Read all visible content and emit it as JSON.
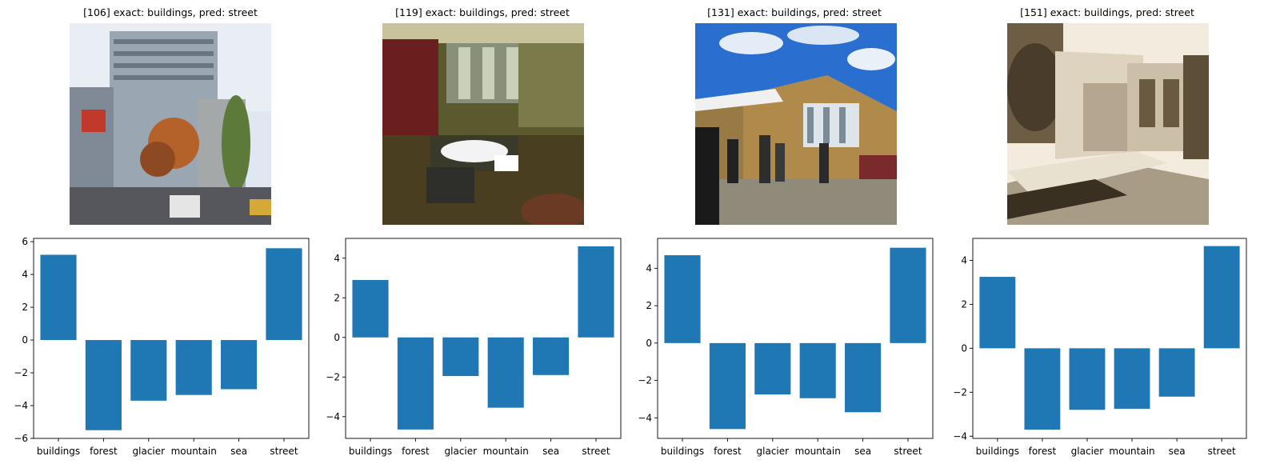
{
  "panels": [
    {
      "title": "[106] exact: buildings, pred: street",
      "image": "city street with tall buildings and autumn trees",
      "chart_data": {
        "type": "bar",
        "categories": [
          "buildings",
          "forest",
          "glacier",
          "mountain",
          "sea",
          "street"
        ],
        "values": [
          5.2,
          -5.5,
          -3.7,
          -3.35,
          -3.0,
          5.6
        ],
        "ylim": [
          -6.0,
          6.2
        ],
        "yticks": [
          -6,
          -4,
          -2,
          0,
          2,
          4,
          6
        ]
      }
    },
    {
      "title": "[119] exact: buildings, pred: street",
      "image": "indoor lounge with people seated on chairs",
      "chart_data": {
        "type": "bar",
        "categories": [
          "buildings",
          "forest",
          "glacier",
          "mountain",
          "sea",
          "street"
        ],
        "values": [
          2.9,
          -4.65,
          -1.95,
          -3.55,
          -1.9,
          4.6
        ],
        "ylim": [
          -5.1,
          5.0
        ],
        "yticks": [
          -4,
          -2,
          0,
          2,
          4
        ]
      }
    },
    {
      "title": "[131] exact: buildings, pred: street",
      "image": "brick building entrance with people under blue sky",
      "chart_data": {
        "type": "bar",
        "categories": [
          "buildings",
          "forest",
          "glacier",
          "mountain",
          "sea",
          "street"
        ],
        "values": [
          4.7,
          -4.6,
          -2.75,
          -2.95,
          -3.7,
          5.1
        ],
        "ylim": [
          -5.1,
          5.6
        ],
        "yticks": [
          -4,
          -2,
          0,
          2,
          4
        ]
      }
    },
    {
      "title": "[151] exact: buildings, pred: street",
      "image": "sepia photo of modern building and walkway",
      "chart_data": {
        "type": "bar",
        "categories": [
          "buildings",
          "forest",
          "glacier",
          "mountain",
          "sea",
          "street"
        ],
        "values": [
          3.25,
          -3.7,
          -2.8,
          -2.75,
          -2.2,
          4.65
        ],
        "ylim": [
          -4.1,
          5.0
        ],
        "yticks": [
          -4,
          -2,
          0,
          2,
          4
        ]
      }
    }
  ],
  "colors": {
    "bar": "#1f77b4"
  }
}
